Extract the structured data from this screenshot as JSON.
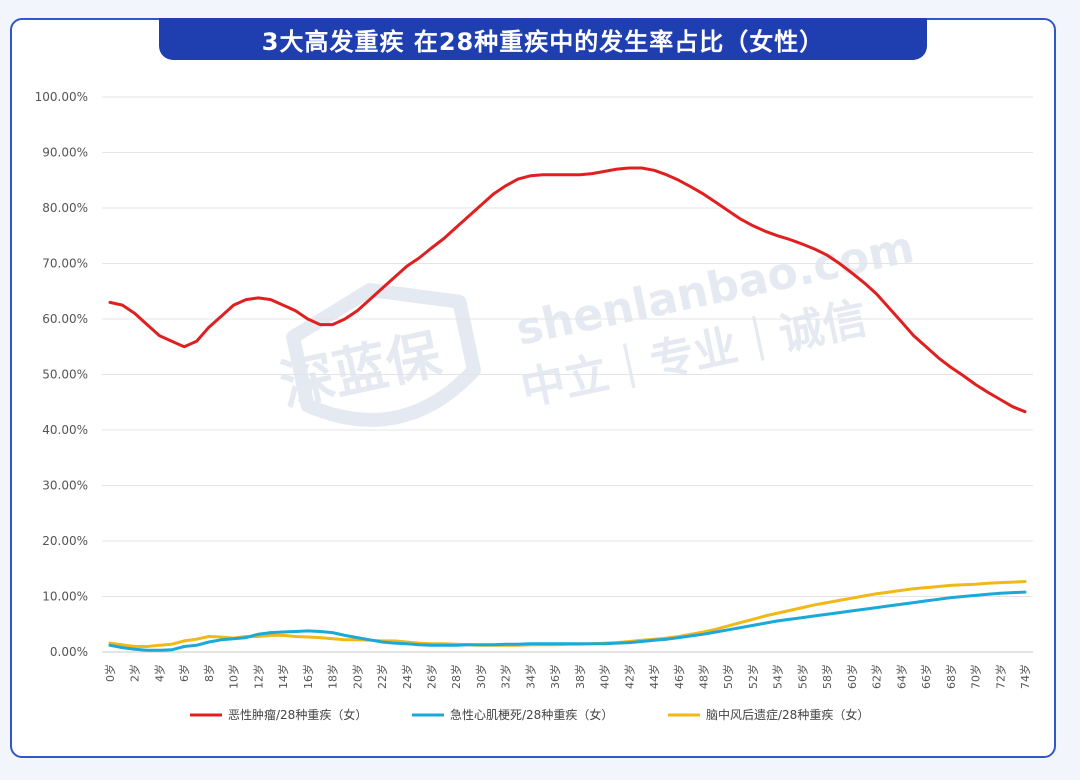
{
  "chart_data": {
    "type": "line",
    "title": "3大高发重疾 在28种重疾中的发生率占比（女性）",
    "xlabel": "",
    "ylabel": "",
    "ylim": [
      0,
      100
    ],
    "yticks": [
      "0.00%",
      "10.00%",
      "20.00%",
      "30.00%",
      "40.00%",
      "50.00%",
      "60.00%",
      "70.00%",
      "80.00%",
      "90.00%",
      "100.00%"
    ],
    "x": [
      "0岁",
      "1岁",
      "2岁",
      "3岁",
      "4岁",
      "5岁",
      "6岁",
      "7岁",
      "8岁",
      "9岁",
      "10岁",
      "11岁",
      "12岁",
      "13岁",
      "14岁",
      "15岁",
      "16岁",
      "17岁",
      "18岁",
      "19岁",
      "20岁",
      "21岁",
      "22岁",
      "23岁",
      "24岁",
      "25岁",
      "26岁",
      "27岁",
      "28岁",
      "29岁",
      "30岁",
      "31岁",
      "32岁",
      "33岁",
      "34岁",
      "35岁",
      "36岁",
      "37岁",
      "38岁",
      "39岁",
      "40岁",
      "41岁",
      "42岁",
      "43岁",
      "44岁",
      "45岁",
      "46岁",
      "47岁",
      "48岁",
      "49岁",
      "50岁",
      "51岁",
      "52岁",
      "53岁",
      "54岁",
      "55岁",
      "56岁",
      "57岁",
      "58岁",
      "59岁",
      "60岁",
      "61岁",
      "62岁",
      "63岁",
      "64岁",
      "65岁",
      "66岁",
      "67岁",
      "68岁",
      "69岁",
      "70岁",
      "71岁",
      "72岁",
      "73岁",
      "74岁"
    ],
    "x_tick_labels": [
      "0岁",
      "2岁",
      "4岁",
      "6岁",
      "8岁",
      "10岁",
      "12岁",
      "14岁",
      "16岁",
      "18岁",
      "20岁",
      "22岁",
      "24岁",
      "26岁",
      "28岁",
      "30岁",
      "32岁",
      "34岁",
      "36岁",
      "38岁",
      "40岁",
      "42岁",
      "44岁",
      "46岁",
      "48岁",
      "50岁",
      "52岁",
      "54岁",
      "56岁",
      "58岁",
      "60岁",
      "62岁",
      "64岁",
      "66岁",
      "68岁",
      "70岁",
      "72岁",
      "74岁"
    ],
    "grid": true,
    "legend_position": "bottom",
    "series": [
      {
        "name": "恶性肿瘤/28种重疾（女）",
        "color": "#e02020",
        "values": [
          63.0,
          62.5,
          61.0,
          59.0,
          57.0,
          56.0,
          55.0,
          56.0,
          58.5,
          60.5,
          62.5,
          63.5,
          63.8,
          63.5,
          62.5,
          61.5,
          60.0,
          59.0,
          59.0,
          60.0,
          61.5,
          63.5,
          65.5,
          67.5,
          69.5,
          71.0,
          72.8,
          74.5,
          76.5,
          78.5,
          80.5,
          82.5,
          84.0,
          85.2,
          85.8,
          86.0,
          86.0,
          86.0,
          86.0,
          86.2,
          86.6,
          87.0,
          87.2,
          87.2,
          86.8,
          86.0,
          85.0,
          83.8,
          82.5,
          81.0,
          79.5,
          78.0,
          76.8,
          75.8,
          75.0,
          74.3,
          73.5,
          72.6,
          71.5,
          70.0,
          68.3,
          66.5,
          64.5,
          62.0,
          59.5,
          57.0,
          55.0,
          53.0,
          51.3,
          49.8,
          48.2,
          46.8,
          45.5,
          44.2,
          43.3
        ]
      },
      {
        "name": "急性心肌梗死/28种重疾（女）",
        "color": "#1aa9d8",
        "values": [
          1.2,
          0.8,
          0.5,
          0.3,
          0.3,
          0.4,
          1.0,
          1.2,
          1.8,
          2.2,
          2.4,
          2.6,
          3.2,
          3.5,
          3.6,
          3.7,
          3.8,
          3.7,
          3.5,
          3.0,
          2.6,
          2.2,
          1.8,
          1.6,
          1.5,
          1.3,
          1.2,
          1.2,
          1.2,
          1.3,
          1.3,
          1.3,
          1.4,
          1.4,
          1.5,
          1.5,
          1.5,
          1.5,
          1.5,
          1.5,
          1.5,
          1.6,
          1.7,
          1.9,
          2.1,
          2.3,
          2.6,
          2.9,
          3.2,
          3.6,
          4.0,
          4.4,
          4.8,
          5.2,
          5.6,
          5.9,
          6.2,
          6.5,
          6.8,
          7.1,
          7.4,
          7.7,
          8.0,
          8.3,
          8.6,
          8.9,
          9.2,
          9.5,
          9.8,
          10.0,
          10.2,
          10.4,
          10.6,
          10.7,
          10.8
        ]
      },
      {
        "name": "脑中风后遗症/28种重疾（女）",
        "color": "#f2b818",
        "values": [
          1.6,
          1.3,
          1.0,
          1.0,
          1.2,
          1.4,
          2.0,
          2.3,
          2.8,
          2.7,
          2.5,
          2.8,
          2.8,
          3.0,
          3.0,
          2.8,
          2.7,
          2.6,
          2.4,
          2.2,
          2.2,
          2.1,
          2.0,
          2.0,
          1.8,
          1.6,
          1.5,
          1.5,
          1.4,
          1.3,
          1.2,
          1.2,
          1.2,
          1.2,
          1.3,
          1.3,
          1.3,
          1.4,
          1.4,
          1.5,
          1.6,
          1.7,
          1.9,
          2.1,
          2.3,
          2.5,
          2.8,
          3.2,
          3.6,
          4.1,
          4.7,
          5.3,
          5.9,
          6.5,
          7.0,
          7.5,
          8.0,
          8.5,
          8.9,
          9.3,
          9.7,
          10.1,
          10.5,
          10.8,
          11.1,
          11.4,
          11.6,
          11.8,
          12.0,
          12.1,
          12.2,
          12.4,
          12.5,
          12.6,
          12.7
        ]
      }
    ]
  },
  "watermark": {
    "logo_text": "深蓝保",
    "domain": "shenlanbao.com",
    "slogan": "中立｜专业｜诚信"
  }
}
